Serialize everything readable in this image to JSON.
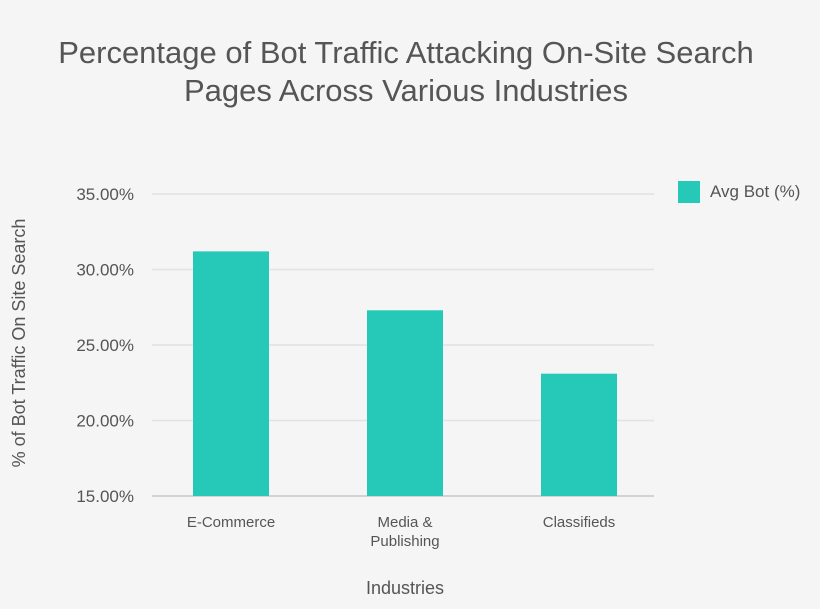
{
  "title_lines": [
    "Percentage of Bot Traffic Attacking On-Site Search",
    "Pages Across Various Industries"
  ],
  "chart_data": {
    "type": "bar",
    "title": "Percentage of Bot Traffic Attacking On-Site Search Pages Across Various Industries",
    "xlabel": "Industries",
    "ylabel": "% of Bot Traffic On Site Search",
    "categories": [
      [
        "E-Commerce"
      ],
      [
        "Media &",
        "Publishing"
      ],
      [
        "Classifieds"
      ]
    ],
    "series": [
      {
        "name": "Avg Bot (%)",
        "values": [
          31.2,
          27.3,
          23.1
        ],
        "color": "#26c9b8"
      }
    ],
    "ylim": [
      15,
      35
    ],
    "yticks": [
      35,
      30,
      25,
      20,
      15
    ],
    "ytick_labels": [
      "35.00%",
      "30.00%",
      "25.00%",
      "20.00%",
      "15.00%"
    ],
    "grid": true,
    "legend_position": "top-right"
  }
}
